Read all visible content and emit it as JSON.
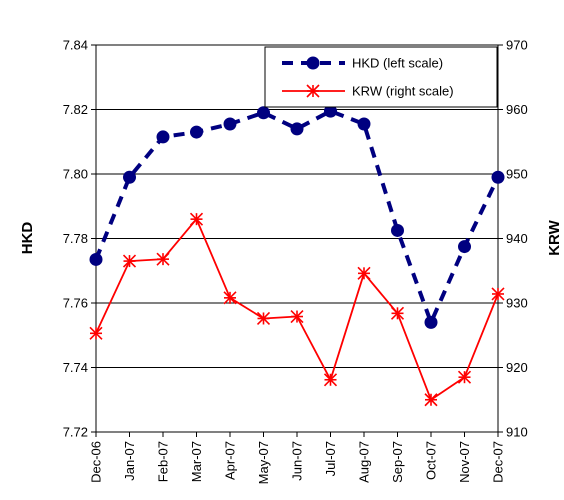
{
  "chart_data": {
    "type": "line",
    "categories": [
      "Dec-06",
      "Jan-07",
      "Feb-07",
      "Mar-07",
      "Apr-07",
      "May-07",
      "Jun-07",
      "Jul-07",
      "Aug-07",
      "Sep-07",
      "Oct-07",
      "Nov-07",
      "Dec-07"
    ],
    "y_left": {
      "label": "HKD",
      "ylim": [
        7.72,
        7.84
      ],
      "ticks": [
        "7.72",
        "7.74",
        "7.76",
        "7.78",
        "7.80",
        "7.82",
        "7.84"
      ]
    },
    "y_right": {
      "label": "KRW",
      "ylim": [
        910,
        970
      ],
      "ticks": [
        "910",
        "920",
        "930",
        "940",
        "950",
        "960",
        "970"
      ]
    },
    "grid": true,
    "legend_position": "top-right",
    "series": [
      {
        "name": "HKD (left scale)",
        "axis": "left",
        "color": "#000080",
        "style": "dashed",
        "marker": "circle",
        "values": [
          7.7735,
          7.799,
          7.8115,
          7.813,
          7.8155,
          7.819,
          7.814,
          7.8195,
          7.8155,
          7.7825,
          7.754,
          7.7775,
          7.799
        ]
      },
      {
        "name": "KRW (right scale)",
        "axis": "right",
        "color": "#ff0000",
        "style": "solid",
        "marker": "asterisk",
        "values": [
          925.3,
          936.5,
          936.8,
          943.0,
          930.8,
          927.6,
          927.9,
          918.1,
          934.6,
          928.4,
          915.0,
          918.5,
          931.4
        ]
      }
    ]
  }
}
